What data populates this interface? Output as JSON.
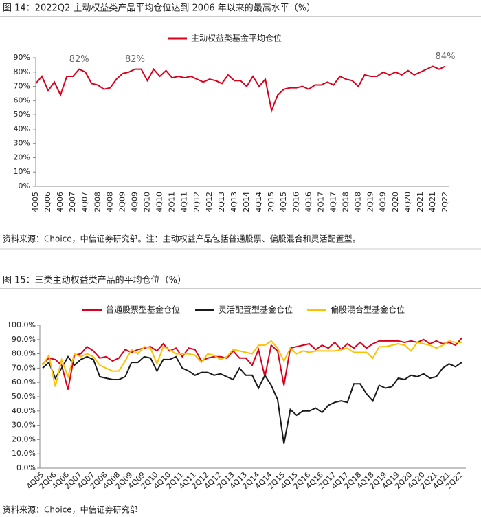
{
  "chart_data": [
    {
      "type": "line",
      "title": "图 14：2022Q2 主动权益类产品平均仓位达到 2006 年以来的最高水平（%）",
      "source": "资料来源：Choice，中信证券研究部。注：主动权益产品包括普通股票、偏股混合和灵活配置型。",
      "categories": [
        "4Q05",
        null,
        "2Q06",
        null,
        "4Q06",
        null,
        "2Q07",
        null,
        "4Q07",
        null,
        "2Q08",
        null,
        "4Q08",
        null,
        "2Q09",
        null,
        "4Q09",
        null,
        "2Q10",
        null,
        "4Q10",
        null,
        "2Q11",
        null,
        "4Q11",
        null,
        "2Q12",
        null,
        "4Q12",
        null,
        "2Q13",
        null,
        "4Q13",
        null,
        "2Q14",
        null,
        "4Q14",
        null,
        "2Q15",
        null,
        "4Q15",
        null,
        "2Q16",
        null,
        "4Q16",
        null,
        "2Q17",
        null,
        "4Q17",
        null,
        "2Q18",
        null,
        "4Q18",
        null,
        "2Q19",
        null,
        "4Q19",
        null,
        "2Q20",
        null,
        "4Q20",
        null,
        "2Q21",
        null,
        "4Q21",
        null,
        "2Q22"
      ],
      "series": [
        {
          "name": "主动权益类基金平均仓位",
          "color": "#d9001b",
          "values": [
            72,
            77,
            67,
            73,
            64,
            77,
            77,
            82,
            80,
            72,
            71,
            68,
            69,
            75,
            79,
            80,
            82,
            82,
            74,
            82,
            77,
            81,
            76,
            77,
            76,
            77,
            75,
            73,
            75,
            74,
            72,
            78,
            74,
            74,
            70,
            77,
            70,
            75,
            53,
            64,
            68,
            69,
            69,
            70,
            68,
            71,
            71,
            73,
            71,
            77,
            75,
            74,
            70,
            78,
            77,
            77,
            80,
            78,
            80,
            78,
            81,
            78,
            80,
            82,
            84,
            82,
            84
          ],
          "value_labels": [
            null,
            null,
            null,
            null,
            null,
            null,
            null,
            "82%",
            null,
            null,
            null,
            null,
            null,
            null,
            null,
            null,
            "82%",
            null,
            null,
            null,
            null,
            null,
            null,
            null,
            null,
            null,
            null,
            null,
            null,
            null,
            null,
            null,
            null,
            null,
            null,
            null,
            null,
            null,
            null,
            null,
            null,
            null,
            null,
            null,
            null,
            null,
            null,
            null,
            null,
            null,
            null,
            null,
            null,
            null,
            null,
            null,
            null,
            null,
            null,
            null,
            null,
            null,
            null,
            null,
            null,
            null,
            "84%"
          ]
        }
      ],
      "ylim": [
        0,
        90
      ],
      "yticks": [
        {
          "value": 0,
          "label": "0%"
        },
        {
          "value": 10,
          "label": "10%"
        },
        {
          "value": 20,
          "label": "20%"
        },
        {
          "value": 30,
          "label": "30%"
        },
        {
          "value": 40,
          "label": "40%"
        },
        {
          "value": 50,
          "label": "50%"
        },
        {
          "value": 60,
          "label": "60%"
        },
        {
          "value": 70,
          "label": "70%"
        },
        {
          "value": 80,
          "label": "80%"
        },
        {
          "value": 90,
          "label": "90%"
        }
      ],
      "legend": "top"
    },
    {
      "type": "line",
      "title": "图 15：三类主动权益类产品的平均仓位（%）",
      "source": "资料来源：Choice，中信证券研究部",
      "categories": [
        "4Q05",
        null,
        "2Q06",
        null,
        "4Q06",
        null,
        "2Q07",
        null,
        "4Q07",
        null,
        "2Q08",
        null,
        "4Q08",
        null,
        "2Q09",
        null,
        "4Q09",
        null,
        "2Q10",
        null,
        "4Q10",
        null,
        "2Q11",
        null,
        "4Q11",
        null,
        "2Q12",
        null,
        "4Q12",
        null,
        "2Q13",
        null,
        "4Q13",
        null,
        "2Q14",
        null,
        "4Q14",
        null,
        "2Q15",
        null,
        "4Q15",
        null,
        "2Q16",
        null,
        "4Q16",
        null,
        "2Q17",
        null,
        "4Q17",
        null,
        "2Q18",
        null,
        "4Q18",
        null,
        "2Q19",
        null,
        "4Q19",
        null,
        "2Q20",
        null,
        "4Q20",
        null,
        "2Q21",
        null,
        "4Q21",
        null,
        "2Q22"
      ],
      "series": [
        {
          "name": "普通股票型基金仓位",
          "color": "#d9001b",
          "values": [
            73,
            77,
            76,
            72,
            55,
            79,
            80,
            85,
            82,
            77,
            78,
            75,
            77,
            83,
            81,
            83,
            84,
            85,
            82,
            87,
            82,
            84,
            78,
            84,
            83,
            75,
            77,
            78,
            78,
            77,
            82,
            77,
            77,
            72,
            83,
            64,
            86,
            82,
            58,
            84,
            85,
            86,
            87,
            83,
            86,
            84,
            88,
            83,
            87,
            84,
            88,
            84,
            87,
            89,
            89,
            89,
            89,
            88,
            89,
            88,
            90,
            87,
            89,
            87,
            88,
            86,
            91
          ]
        },
        {
          "name": "灵活配置型基金仓位",
          "color": "#1a1a1a",
          "values": [
            70,
            74,
            63,
            70,
            78,
            72,
            76,
            78,
            76,
            64,
            63,
            62,
            62,
            64,
            74,
            74,
            78,
            77,
            68,
            76,
            76,
            78,
            70,
            68,
            65,
            67,
            67,
            65,
            66,
            64,
            62,
            70,
            65,
            65,
            56,
            65,
            58,
            48,
            17,
            41,
            37,
            40,
            40,
            42,
            39,
            44,
            46,
            47,
            46,
            59,
            59,
            52,
            47,
            58,
            56,
            57,
            63,
            62,
            65,
            64,
            66,
            63,
            64,
            70,
            73,
            71,
            74
          ]
        },
        {
          "name": "偏股混合型基金仓位",
          "color": "#ffc000",
          "values": [
            72,
            79,
            57,
            76,
            64,
            80,
            78,
            80,
            78,
            72,
            70,
            68,
            68,
            75,
            83,
            80,
            85,
            84,
            73,
            85,
            83,
            80,
            80,
            80,
            79,
            74,
            80,
            79,
            76,
            78,
            83,
            82,
            81,
            80,
            86,
            86,
            89,
            84,
            75,
            84,
            80,
            82,
            81,
            82,
            82,
            82,
            82,
            83,
            84,
            81,
            81,
            81,
            77,
            85,
            85,
            86,
            87,
            86,
            82,
            88,
            87,
            86,
            84,
            86,
            89,
            88,
            88
          ]
        }
      ],
      "ylim": [
        0,
        100
      ],
      "yticks": [
        {
          "value": 0,
          "label": "0.0%"
        },
        {
          "value": 10,
          "label": "10.0%"
        },
        {
          "value": 20,
          "label": "20.0%"
        },
        {
          "value": 30,
          "label": "30.0%"
        },
        {
          "value": 40,
          "label": "40.0%"
        },
        {
          "value": 50,
          "label": "50.0%"
        },
        {
          "value": 60,
          "label": "60.0%"
        },
        {
          "value": 70,
          "label": "70.0%"
        },
        {
          "value": 80,
          "label": "80.0%"
        },
        {
          "value": 90,
          "label": "90.0%"
        },
        {
          "value": 100,
          "label": "100.0%"
        }
      ],
      "legend": "top"
    }
  ]
}
